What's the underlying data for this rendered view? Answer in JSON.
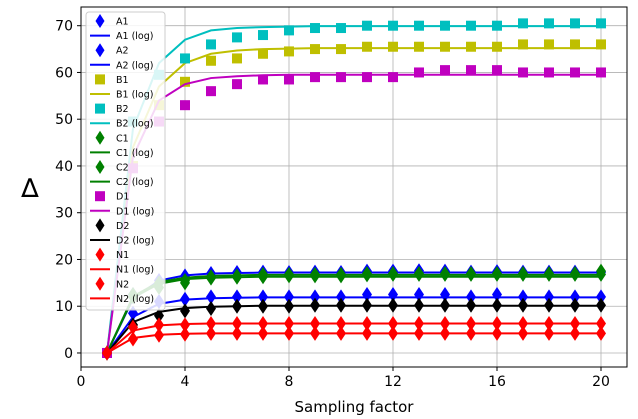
{
  "chart_data": {
    "type": "line",
    "title": "",
    "xlabel": "Sampling factor",
    "ylabel": "∆",
    "xlim": [
      0,
      21
    ],
    "ylim": [
      -3,
      74
    ],
    "xticks": [
      0,
      4,
      8,
      12,
      16,
      20
    ],
    "yticks": [
      0,
      10,
      20,
      30,
      40,
      50,
      60,
      70
    ],
    "grid": true,
    "legend_position": "top-left",
    "x": [
      1,
      2,
      3,
      4,
      5,
      6,
      7,
      8,
      9,
      10,
      11,
      12,
      13,
      14,
      15,
      16,
      17,
      18,
      19,
      20
    ],
    "series": [
      {
        "name": "A1",
        "kind": "marker",
        "marker": "diamond",
        "color": "#0000ff",
        "values": [
          0,
          8.5,
          11,
          11.5,
          12,
          12,
          12,
          12,
          12,
          12,
          12.5,
          12.5,
          12.5,
          12.5,
          12,
          12.5,
          12,
          12,
          12,
          12
        ]
      },
      {
        "name": "A1 (log)",
        "kind": "line",
        "color": "#0000ff",
        "values": [
          0,
          7.7,
          10.5,
          11.4,
          11.7,
          11.8,
          11.9,
          11.9,
          11.9,
          11.9,
          11.9,
          11.9,
          11.9,
          11.9,
          11.9,
          11.9,
          11.9,
          11.9,
          11.9,
          11.9
        ]
      },
      {
        "name": "A2",
        "kind": "marker",
        "marker": "diamond",
        "color": "#0000ff",
        "values": [
          0,
          12.5,
          15.5,
          16.5,
          17,
          17.2,
          17.3,
          17.2,
          17.3,
          17.2,
          17.5,
          17.5,
          17.6,
          17.5,
          17.3,
          17.4,
          17.3,
          17.3,
          17.3,
          17.3
        ]
      },
      {
        "name": "A2 (log)",
        "kind": "line",
        "color": "#0000ff",
        "values": [
          0,
          11.6,
          15.5,
          16.6,
          17,
          17.1,
          17.2,
          17.2,
          17.2,
          17.2,
          17.2,
          17.2,
          17.2,
          17.2,
          17.2,
          17.2,
          17.2,
          17.2,
          17.2,
          17.2
        ]
      },
      {
        "name": "B1",
        "kind": "marker",
        "marker": "square",
        "color": "#bfbf00",
        "values": [
          0,
          40,
          53,
          58,
          62.5,
          63,
          64,
          64.5,
          65,
          65,
          65.5,
          65.5,
          65.5,
          65.5,
          65.5,
          65.5,
          66,
          66,
          66,
          66
        ]
      },
      {
        "name": "B1 (log)",
        "kind": "line",
        "color": "#bfbf00",
        "values": [
          0,
          44,
          57,
          62,
          64,
          64.7,
          65,
          65.1,
          65.2,
          65.2,
          65.2,
          65.2,
          65.2,
          65.2,
          65.2,
          65.2,
          65.2,
          65.2,
          65.2,
          65.2
        ]
      },
      {
        "name": "B2",
        "kind": "marker",
        "marker": "square",
        "color": "#00bfbf",
        "values": [
          0,
          49.5,
          59.5,
          63,
          66,
          67.5,
          68,
          69,
          69.5,
          69.5,
          70,
          70,
          70,
          70,
          70,
          70,
          70.5,
          70.5,
          70.5,
          70.5
        ]
      },
      {
        "name": "B2 (log)",
        "kind": "line",
        "color": "#00bfbf",
        "values": [
          0,
          48,
          62,
          67,
          69,
          69.5,
          69.7,
          69.8,
          69.9,
          69.9,
          69.9,
          69.9,
          69.9,
          69.9,
          69.9,
          69.9,
          69.9,
          69.9,
          69.9,
          69.9
        ]
      },
      {
        "name": "C1",
        "kind": "marker",
        "marker": "diamond",
        "color": "#008000",
        "values": [
          0,
          12,
          14,
          15,
          16,
          16.2,
          16.3,
          16.5,
          16.5,
          16.5,
          16.7,
          16.8,
          16.8,
          16.8,
          16.8,
          16.8,
          16.8,
          16.8,
          16.8,
          16.8
        ]
      },
      {
        "name": "C1 (log)",
        "kind": "line",
        "color": "#008000",
        "values": [
          0,
          11.8,
          14.8,
          15.8,
          16.1,
          16.2,
          16.3,
          16.3,
          16.3,
          16.3,
          16.3,
          16.3,
          16.3,
          16.3,
          16.3,
          16.3,
          16.3,
          16.3,
          16.3,
          16.3
        ]
      },
      {
        "name": "C2",
        "kind": "marker",
        "marker": "diamond",
        "color": "#008000",
        "values": [
          0,
          12.5,
          15,
          15.5,
          16.3,
          16.5,
          16.8,
          16.8,
          16.8,
          16.8,
          17,
          17,
          17,
          17,
          17,
          17,
          17,
          17,
          17,
          17.5
        ]
      },
      {
        "name": "C2 (log)",
        "kind": "line",
        "color": "#008000",
        "values": [
          0,
          12.1,
          15.2,
          16.1,
          16.5,
          16.6,
          16.7,
          16.7,
          16.7,
          16.7,
          16.7,
          16.7,
          16.7,
          16.7,
          16.7,
          16.7,
          16.7,
          16.7,
          16.7,
          16.7
        ]
      },
      {
        "name": "D1",
        "kind": "marker",
        "marker": "square",
        "color": "#bf00bf",
        "values": [
          0,
          39.5,
          49.5,
          53,
          56,
          57.5,
          58.5,
          58.5,
          59,
          59,
          59,
          59,
          60,
          60.5,
          60.5,
          60.5,
          60,
          60,
          60,
          60
        ]
      },
      {
        "name": "D1 (log)",
        "kind": "line",
        "color": "#bf00bf",
        "values": [
          0,
          42,
          54,
          57.5,
          58.8,
          59.2,
          59.4,
          59.5,
          59.5,
          59.5,
          59.5,
          59.5,
          59.5,
          59.5,
          59.5,
          59.5,
          59.5,
          59.5,
          59.5,
          59.5
        ]
      },
      {
        "name": "D2",
        "kind": "marker",
        "marker": "diamond",
        "color": "#000000",
        "values": [
          0,
          6,
          8,
          9,
          9.5,
          10,
          10,
          10,
          10.2,
          10.2,
          10.2,
          10.2,
          10.2,
          10.2,
          10.2,
          10.2,
          10.2,
          10.2,
          10.2,
          10.2
        ]
      },
      {
        "name": "D2 (log)",
        "kind": "line",
        "color": "#000000",
        "values": [
          0,
          6.6,
          8.8,
          9.6,
          9.9,
          10,
          10.1,
          10.1,
          10.1,
          10.1,
          10.1,
          10.1,
          10.1,
          10.1,
          10.1,
          10.1,
          10.1,
          10.1,
          10.1,
          10.1
        ]
      },
      {
        "name": "N1",
        "kind": "marker",
        "marker": "diamond",
        "color": "#ff0000",
        "values": [
          0,
          5.5,
          6,
          6,
          6.3,
          6.3,
          6.3,
          6.3,
          6.3,
          6.3,
          6.3,
          6.3,
          6.3,
          6.3,
          6.3,
          6.3,
          6.3,
          6.3,
          6.3,
          6.3
        ]
      },
      {
        "name": "N1 (log)",
        "kind": "line",
        "color": "#ff0000",
        "values": [
          0,
          4.8,
          5.9,
          6.2,
          6.3,
          6.3,
          6.3,
          6.3,
          6.3,
          6.3,
          6.3,
          6.3,
          6.3,
          6.3,
          6.3,
          6.3,
          6.3,
          6.3,
          6.3,
          6.3
        ]
      },
      {
        "name": "N2",
        "kind": "marker",
        "marker": "diamond",
        "color": "#ff0000",
        "values": [
          0,
          3,
          3.8,
          4,
          4.2,
          4.2,
          4.2,
          4.2,
          4.2,
          4.2,
          4.2,
          4.2,
          4.2,
          4.2,
          4.2,
          4.2,
          4.2,
          4.2,
          4.2,
          4.2
        ]
      },
      {
        "name": "N2 (log)",
        "kind": "line",
        "color": "#ff0000",
        "values": [
          0,
          3.2,
          3.9,
          4.1,
          4.2,
          4.2,
          4.2,
          4.2,
          4.2,
          4.2,
          4.2,
          4.2,
          4.2,
          4.2,
          4.2,
          4.2,
          4.2,
          4.2,
          4.2,
          4.2
        ]
      }
    ]
  }
}
